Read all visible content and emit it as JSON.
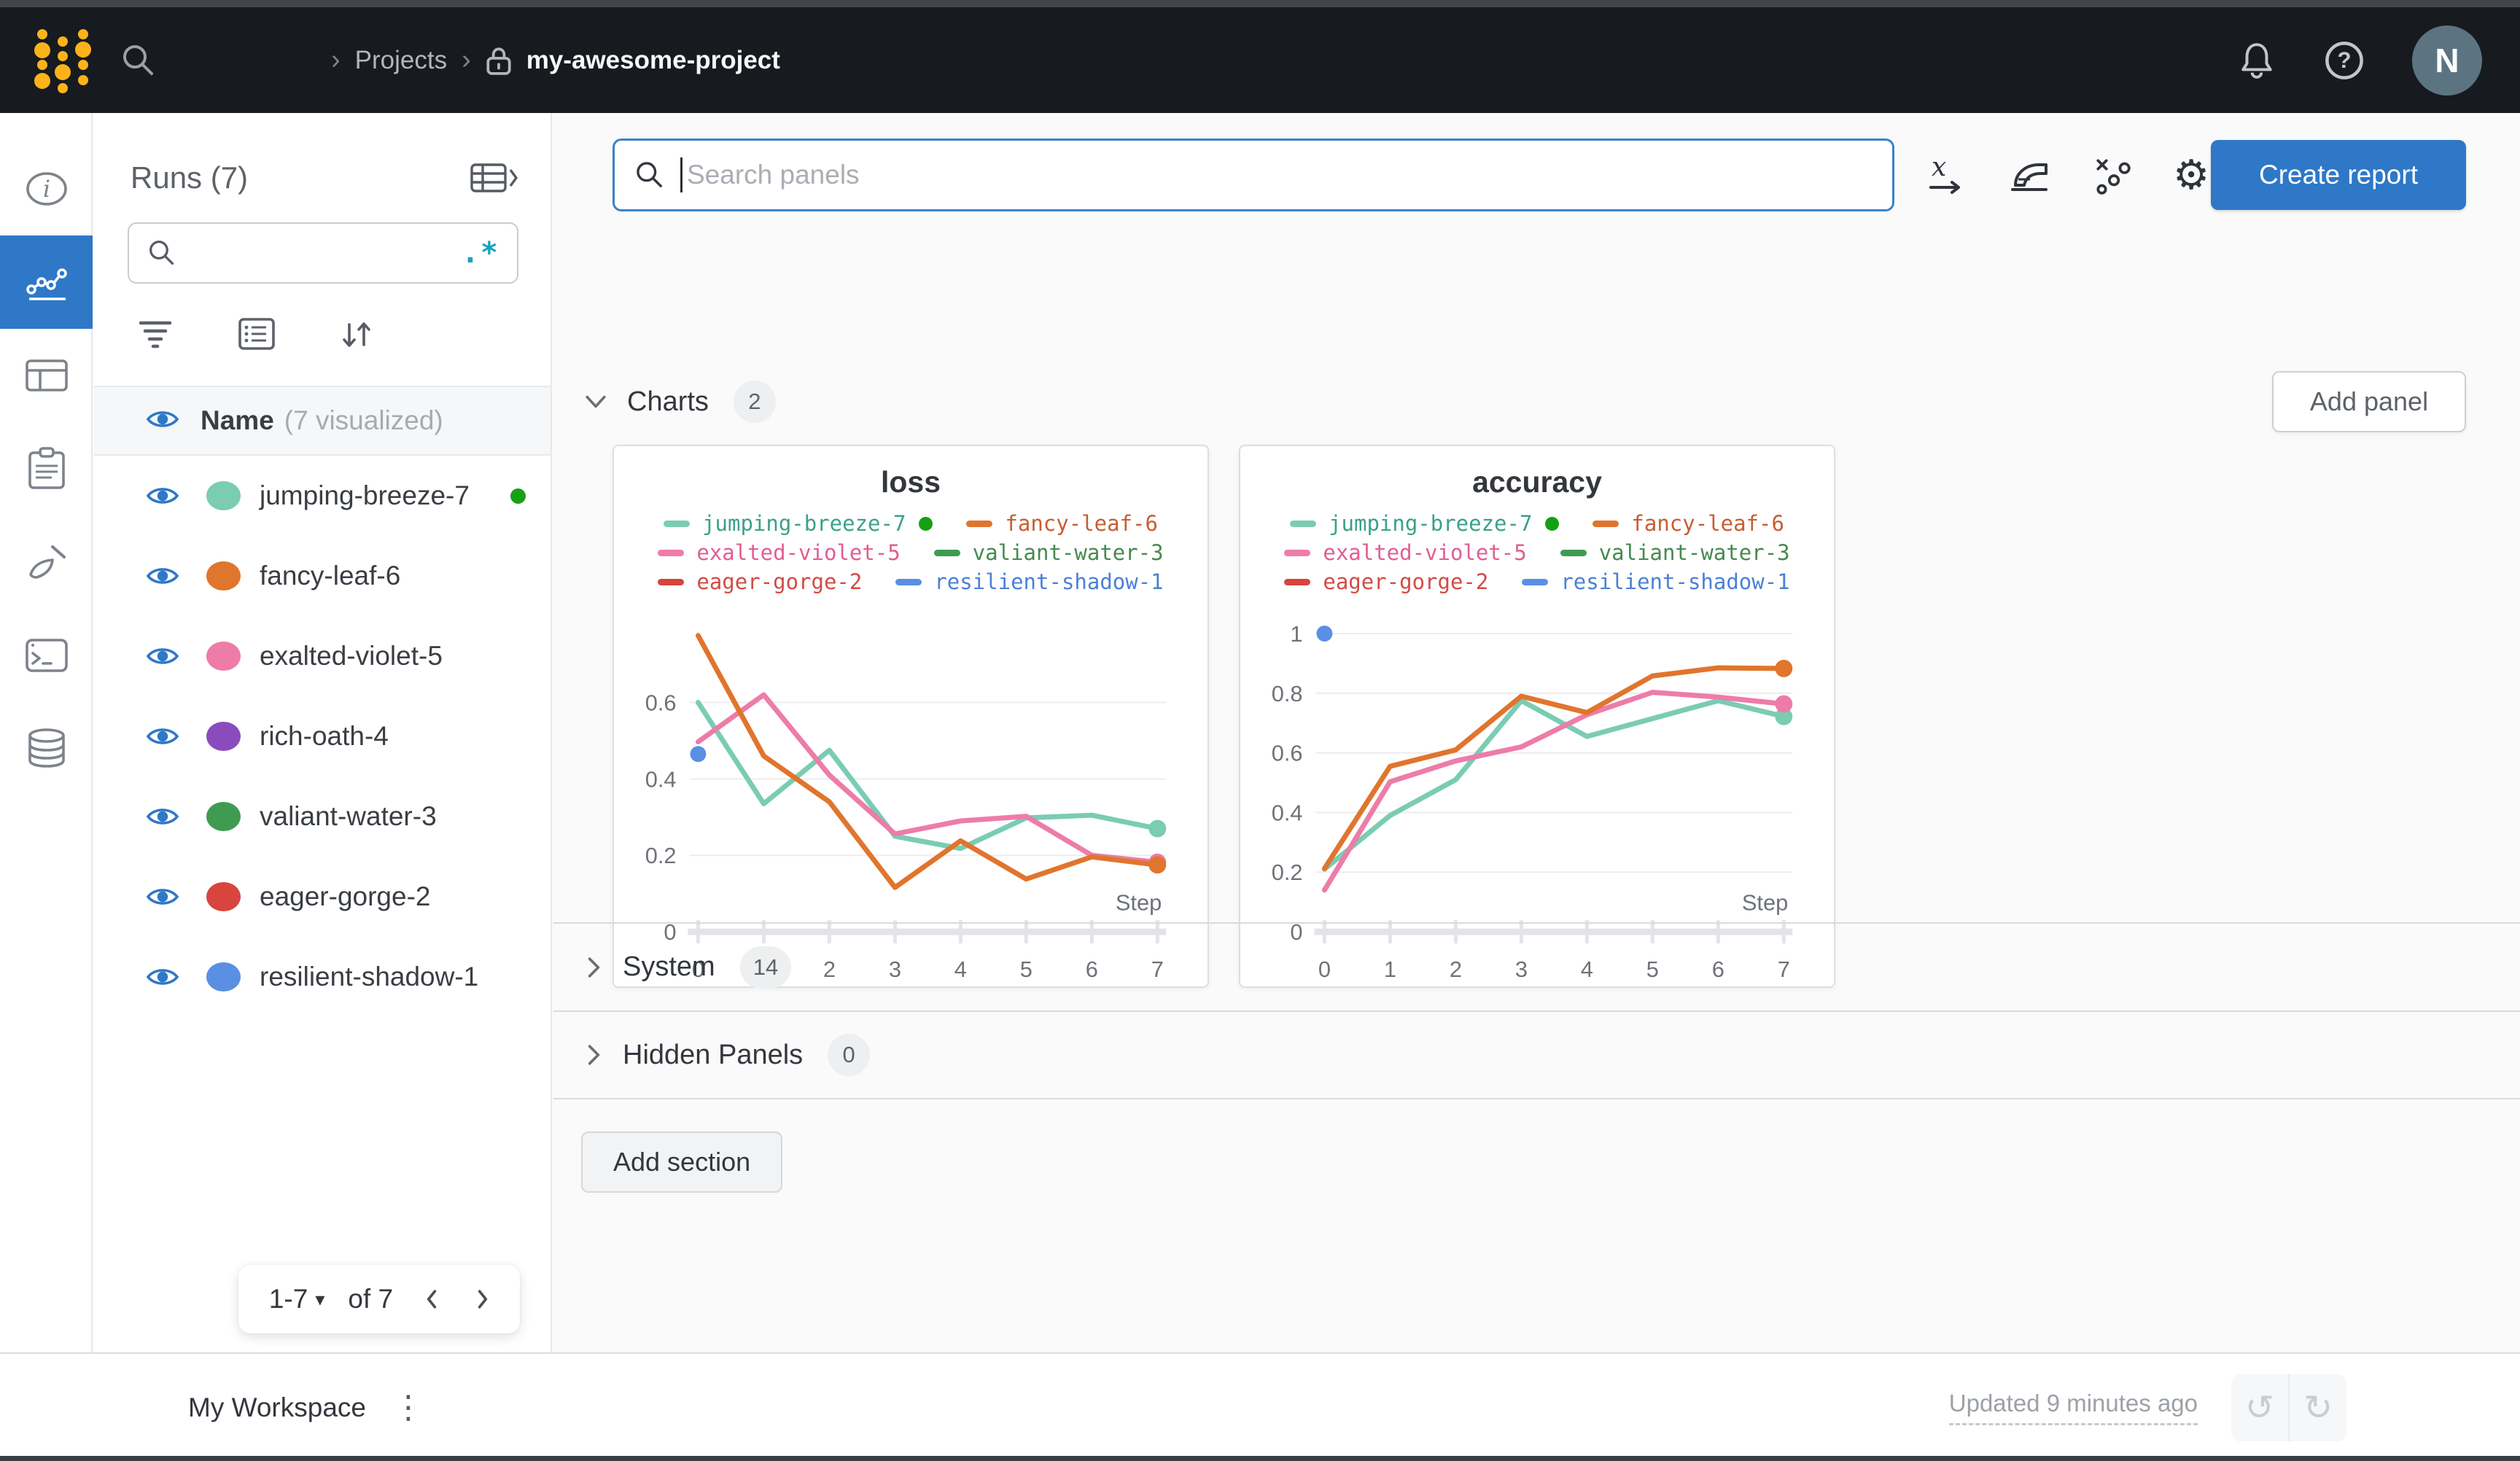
{
  "topbar": {
    "breadcrumb": {
      "chevron": "›",
      "projects": "Projects",
      "project": "my-awesome-project"
    },
    "avatar_initial": "N"
  },
  "icons": {
    "gear": "⚙",
    "kebab": "⋮",
    "undo": "↺",
    "redo": "↻",
    "caret_down": "▾",
    "regex": ".*"
  },
  "runs_panel": {
    "title": "Runs (7)",
    "search_placeholder": "",
    "name_header": "Name",
    "visualized_note": "(7 visualized)",
    "runs": [
      {
        "name": "jumping-breeze-7",
        "color": "#7accb3",
        "live": true
      },
      {
        "name": "fancy-leaf-6",
        "color": "#e0752d",
        "live": false
      },
      {
        "name": "exalted-violet-5",
        "color": "#ed7ca8",
        "live": false
      },
      {
        "name": "rich-oath-4",
        "color": "#8a4bbf",
        "live": false
      },
      {
        "name": "valiant-water-3",
        "color": "#3f9b52",
        "live": false
      },
      {
        "name": "eager-gorge-2",
        "color": "#d7453e",
        "live": false
      },
      {
        "name": "resilient-shadow-1",
        "color": "#5a8fe4",
        "live": false
      }
    ],
    "pagination": {
      "range_label": "1-7",
      "total_label": "of 7"
    }
  },
  "main": {
    "search_placeholder": "Search panels",
    "create_report_label": "Create report",
    "add_panel_label": "Add panel",
    "add_section_label": "Add section",
    "sections": [
      {
        "label": "Charts",
        "count": "2"
      },
      {
        "label": "System",
        "count": "14"
      },
      {
        "label": "Hidden Panels",
        "count": "0"
      }
    ]
  },
  "footer": {
    "workspace_label": "My Workspace",
    "updated_label": "Updated 9 minutes ago"
  },
  "colors": {
    "accent_blue": "#2e78c7",
    "topbar_bg": "#171a1f",
    "logo_yellow": "#fcb31b",
    "live_green": "#13a013",
    "regex_teal": "#16a3bd"
  },
  "chart_data": [
    {
      "type": "line",
      "title": "loss",
      "xlabel": "Step",
      "x": [
        0,
        1,
        2,
        3,
        4,
        5,
        6,
        7
      ],
      "xticks": [
        "0",
        "1",
        "2",
        "3",
        "4",
        "5",
        "6",
        "7"
      ],
      "yticks": [
        0,
        0.2,
        0.4,
        0.6
      ],
      "ylim": [
        0,
        0.873
      ],
      "grid": true,
      "legend_position": "top",
      "series": [
        {
          "name": "jumping-breeze-7",
          "color": "#7accb3",
          "text_color": "#3ba189",
          "live": true,
          "end_dot": true,
          "draw_order": 1,
          "values": [
            0.6,
            0.335,
            0.475,
            0.25,
            0.218,
            0.298,
            0.305,
            0.27
          ]
        },
        {
          "name": "fancy-leaf-6",
          "color": "#e0752d",
          "text_color": "#c85d32",
          "live": false,
          "end_dot": true,
          "draw_order": 3,
          "values": [
            0.775,
            0.46,
            0.34,
            0.116,
            0.238,
            0.138,
            0.196,
            0.175
          ]
        },
        {
          "name": "exalted-violet-5",
          "color": "#ed7ca8",
          "text_color": "#e05e92",
          "live": false,
          "end_dot": true,
          "draw_order": 2,
          "values": [
            0.497,
            0.62,
            0.41,
            0.256,
            0.29,
            0.302,
            0.2,
            0.182
          ]
        },
        {
          "name": "valiant-water-3",
          "color": "#3f9b52",
          "text_color": "#468a50",
          "live": false,
          "values": []
        },
        {
          "name": "eager-gorge-2",
          "color": "#d7453e",
          "text_color": "#d34b44",
          "live": false,
          "values": []
        },
        {
          "name": "resilient-shadow-1",
          "color": "#5a8fe4",
          "text_color": "#4b80d6",
          "live": false,
          "dot_only": true,
          "draw_order": 4,
          "values": [
            0.465
          ]
        }
      ]
    },
    {
      "type": "line",
      "title": "accuracy",
      "xlabel": "Step",
      "x": [
        0,
        1,
        2,
        3,
        4,
        5,
        6,
        7
      ],
      "xticks": [
        "0",
        "1",
        "2",
        "3",
        "4",
        "5",
        "6",
        "7"
      ],
      "yticks": [
        0,
        0.2,
        0.4,
        0.6,
        0.8,
        1
      ],
      "ylim": [
        0,
        1.119
      ],
      "grid": true,
      "legend_position": "top",
      "series": [
        {
          "name": "jumping-breeze-7",
          "color": "#7accb3",
          "text_color": "#3ba189",
          "live": true,
          "end_dot": true,
          "draw_order": 1,
          "values": [
            0.21,
            0.39,
            0.51,
            0.775,
            0.655,
            0.715,
            0.775,
            0.722
          ]
        },
        {
          "name": "fancy-leaf-6",
          "color": "#e0752d",
          "text_color": "#c85d32",
          "live": false,
          "end_dot": true,
          "draw_order": 3,
          "values": [
            0.212,
            0.555,
            0.61,
            0.79,
            0.735,
            0.858,
            0.885,
            0.883
          ]
        },
        {
          "name": "exalted-violet-5",
          "color": "#ed7ca8",
          "text_color": "#e05e92",
          "live": false,
          "end_dot": true,
          "draw_order": 2,
          "values": [
            0.14,
            0.503,
            0.573,
            0.62,
            0.728,
            0.803,
            0.787,
            0.764
          ]
        },
        {
          "name": "valiant-water-3",
          "color": "#3f9b52",
          "text_color": "#468a50",
          "live": false,
          "values": []
        },
        {
          "name": "eager-gorge-2",
          "color": "#d7453e",
          "text_color": "#d34b44",
          "live": false,
          "values": []
        },
        {
          "name": "resilient-shadow-1",
          "color": "#5a8fe4",
          "text_color": "#4b80d6",
          "live": false,
          "dot_only": true,
          "draw_order": 4,
          "values": [
            1.0
          ]
        }
      ]
    }
  ]
}
